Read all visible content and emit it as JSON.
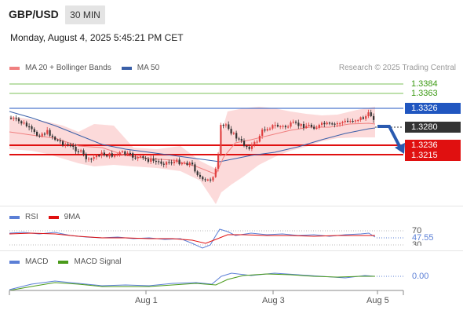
{
  "header": {
    "symbol": "GBP/USD",
    "timeframe": "30 MIN",
    "datetime": "Monday, August 4, 2025 5:45:21 PM CET"
  },
  "main_legend": {
    "items": [
      {
        "label": "MA 20 + Bollinger Bands",
        "color": "#f08080"
      },
      {
        "label": "MA 50",
        "color": "#3a5fa8"
      }
    ],
    "credit": "Research © 2025 Trading Central"
  },
  "price_levels": {
    "r2": "1.3384",
    "r1": "1.3363",
    "current_high": "1.3326",
    "last": "1.3280",
    "s1": "1.3236",
    "s2": "1.3215"
  },
  "rsi_panel": {
    "legend": [
      {
        "label": "RSI",
        "color": "#5b7fd6"
      },
      {
        "label": "9MA",
        "color": "#e01010"
      }
    ],
    "level_high": "70",
    "value": "47.55",
    "level_low": "30"
  },
  "macd_panel": {
    "legend": [
      {
        "label": "MACD",
        "color": "#5b7fd6"
      },
      {
        "label": "MACD Signal",
        "color": "#4a9a1a"
      }
    ],
    "value": "0.00"
  },
  "x_axis": {
    "labels": [
      "Aug 1",
      "Aug 3",
      "Aug 5"
    ]
  },
  "colors": {
    "resistance": "#3b9a13",
    "support": "#e01010",
    "current": "#2056c0",
    "last": "#333333",
    "bullish": "#e04040",
    "bearish": "#333333",
    "band_fill": "#fbd4d4",
    "arrow": "#2a5ab0"
  }
}
